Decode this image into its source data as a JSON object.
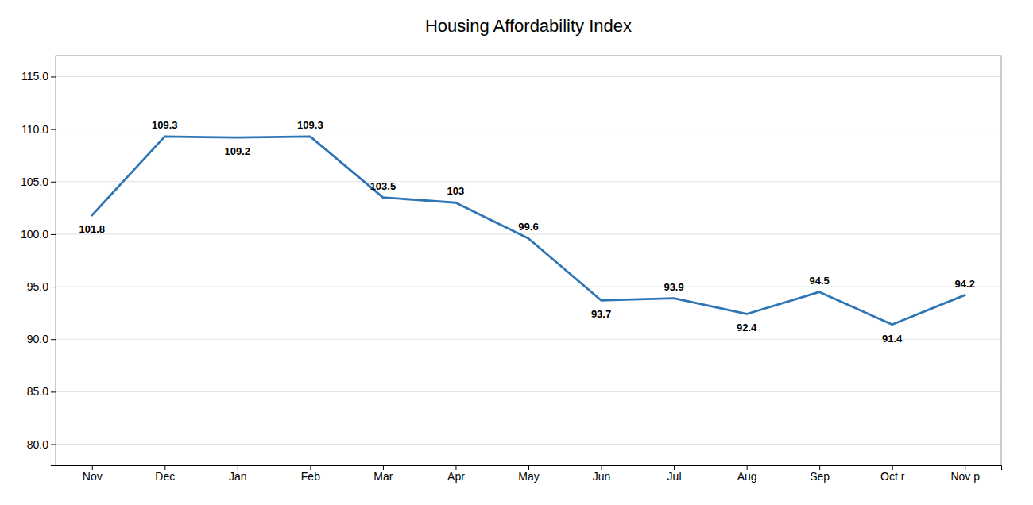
{
  "chart_data": {
    "type": "line",
    "title": "Housing Affordability Index",
    "categories": [
      "Nov",
      "Dec",
      "Jan",
      "Feb",
      "Mar",
      "Apr",
      "May",
      "Jun",
      "Jul",
      "Aug",
      "Sep",
      "Oct r",
      "Nov p"
    ],
    "values": [
      101.8,
      109.3,
      109.2,
      109.3,
      103.5,
      103.0,
      99.6,
      93.7,
      93.9,
      92.4,
      94.5,
      91.4,
      94.2
    ],
    "color": "#2E75B6",
    "ylim": [
      78.0,
      117.0
    ],
    "yticks": [
      {
        "value": 80.0,
        "label": "80.0"
      },
      {
        "value": 85.0,
        "label": "85.0"
      },
      {
        "value": 90.0,
        "label": "90.0"
      },
      {
        "value": 95.0,
        "label": "95.0"
      },
      {
        "value": 100.0,
        "label": "100.0"
      },
      {
        "value": 105.0,
        "label": "105.0"
      },
      {
        "value": 110.0,
        "label": "110.0"
      },
      {
        "value": 115.0,
        "label": "115.0"
      }
    ],
    "grid": true,
    "data_labels": true
  }
}
